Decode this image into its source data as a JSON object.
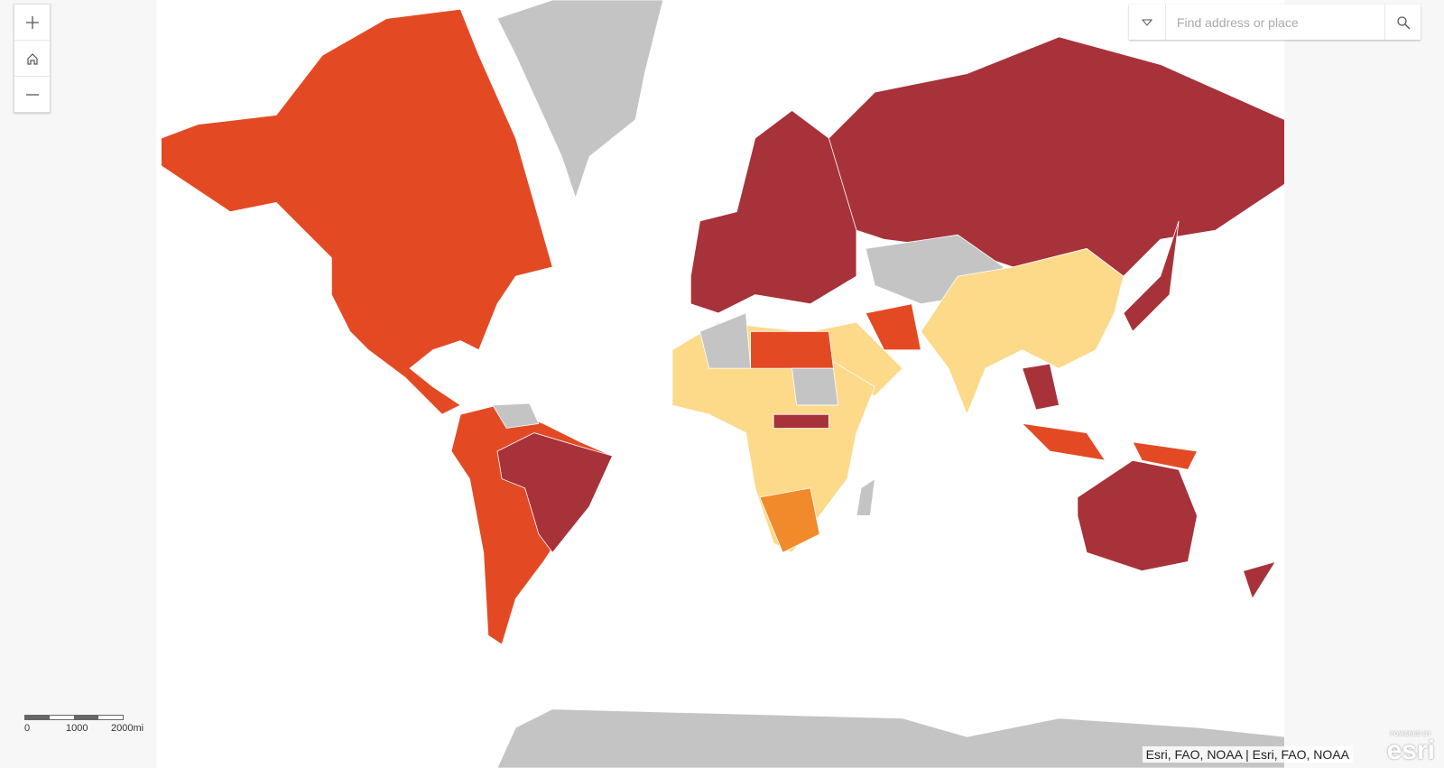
{
  "search": {
    "placeholder": "Find address or place"
  },
  "scale_bar": {
    "labels": [
      "0",
      "1000",
      "2000mi"
    ]
  },
  "attribution": "Esri, FAO, NOAA | Esri, FAO, NOAA",
  "logo": {
    "caption": "POWERED BY",
    "name": "esri"
  }
}
